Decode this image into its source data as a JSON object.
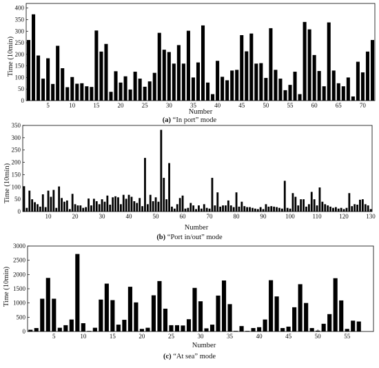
{
  "chart_data": [
    {
      "type": "bar",
      "caption_letter": "(a)",
      "caption_text": " “In port” mode",
      "xlabel": "Number",
      "ylabel": "Time (10min)",
      "xlim": [
        0.5,
        72.5
      ],
      "ylim": [
        0,
        420
      ],
      "yticks": [
        0,
        50,
        100,
        150,
        200,
        250,
        300,
        350,
        400
      ],
      "xticks": [
        5,
        10,
        15,
        20,
        25,
        30,
        35,
        40,
        45,
        50,
        55,
        60,
        65,
        70
      ],
      "x_start": 1,
      "values": [
        262,
        373,
        195,
        95,
        183,
        72,
        237,
        140,
        58,
        102,
        73,
        75,
        62,
        59,
        303,
        212,
        245,
        38,
        127,
        78,
        105,
        48,
        125,
        95,
        60,
        83,
        120,
        293,
        220,
        210,
        160,
        240,
        160,
        302,
        100,
        165,
        325,
        78,
        28,
        172,
        103,
        88,
        130,
        133,
        283,
        213,
        290,
        160,
        162,
        98,
        313,
        133,
        95,
        45,
        68,
        125,
        28,
        340,
        308,
        197,
        128,
        62,
        338,
        130,
        75,
        62,
        100,
        18,
        168,
        122,
        212,
        262
      ]
    },
    {
      "type": "bar",
      "caption_letter": "(b)",
      "caption_text": " “Port in/out” mode",
      "xlabel": "Number",
      "ylabel": "Time (10min)",
      "xlim": [
        0.5,
        130.5
      ],
      "ylim": [
        0,
        350
      ],
      "yticks": [
        0,
        50,
        100,
        150,
        200,
        250,
        300,
        350
      ],
      "xticks": [
        10,
        20,
        30,
        40,
        50,
        60,
        70,
        80,
        90,
        100,
        110,
        120,
        130
      ],
      "x_start": 1,
      "values": [
        103,
        15,
        85,
        50,
        38,
        30,
        20,
        70,
        18,
        85,
        60,
        88,
        15,
        102,
        55,
        40,
        45,
        10,
        72,
        30,
        25,
        25,
        15,
        18,
        53,
        25,
        52,
        42,
        30,
        50,
        40,
        65,
        28,
        58,
        62,
        58,
        30,
        68,
        52,
        68,
        60,
        42,
        35,
        55,
        22,
        218,
        30,
        68,
        42,
        58,
        40,
        332,
        137,
        50,
        197,
        20,
        12,
        30,
        55,
        65,
        12,
        15,
        35,
        25,
        10,
        25,
        12,
        30,
        15,
        12,
        137,
        25,
        78,
        20,
        25,
        25,
        45,
        25,
        18,
        78,
        20,
        40,
        22,
        18,
        18,
        15,
        12,
        10,
        18,
        10,
        30,
        20,
        22,
        20,
        18,
        15,
        12,
        125,
        15,
        12,
        75,
        60,
        25,
        50,
        50,
        20,
        30,
        80,
        50,
        25,
        98,
        40,
        30,
        25,
        20,
        15,
        18,
        12,
        15,
        10,
        15,
        75,
        22,
        30,
        28,
        48,
        50,
        30,
        25,
        10
      ]
    },
    {
      "type": "bar",
      "caption_letter": "(c)",
      "caption_text": " “At sea” mode",
      "xlabel": "Number",
      "ylabel": "Time (10min)",
      "xlim": [
        0.5,
        59.5
      ],
      "ylim": [
        0,
        3000
      ],
      "yticks": [
        0,
        500,
        1000,
        1500,
        2000,
        2500,
        3000
      ],
      "xticks": [
        5,
        10,
        15,
        20,
        25,
        30,
        35,
        40,
        45,
        50,
        55
      ],
      "x_start": 1,
      "values": [
        60,
        120,
        1150,
        1880,
        1150,
        130,
        220,
        420,
        2720,
        290,
        20,
        130,
        1120,
        1680,
        1100,
        240,
        410,
        1570,
        1020,
        90,
        130,
        1270,
        1770,
        800,
        220,
        220,
        210,
        430,
        1530,
        1060,
        110,
        240,
        1260,
        1790,
        960,
        20,
        190,
        20,
        120,
        150,
        420,
        1800,
        1230,
        120,
        170,
        850,
        1660,
        1000,
        120,
        30,
        270,
        610,
        1870,
        1090,
        90,
        380,
        350
      ]
    }
  ]
}
